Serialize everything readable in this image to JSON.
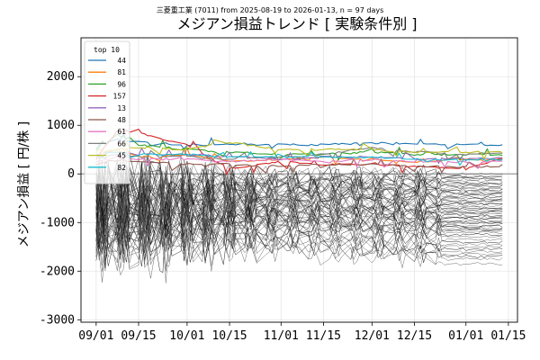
{
  "chart_data": {
    "type": "line",
    "supertitle": "三菱重工業 (7011) from 2025-08-19 to 2026-01-13, n = 97 days",
    "title": "メジアン損益トレンド [ 実験条件別 ]",
    "xlabel": "",
    "ylabel": "メジアン損益 [ 円/株 ]",
    "x_ticks": [
      "09/01",
      "09/15",
      "10/01",
      "10/15",
      "11/01",
      "11/15",
      "12/01",
      "12/15",
      "01/01",
      "01/15"
    ],
    "x_range": [
      "2025-08-27",
      "2026-01-18"
    ],
    "ylim": [
      -3050,
      2800
    ],
    "y_ticks": [
      -3000,
      -2000,
      -1000,
      0,
      1000,
      2000
    ],
    "grid": true,
    "zero_line": 0,
    "legend": {
      "title": "top 10",
      "placement": "top-left",
      "entries": [
        {
          "label": "44",
          "color": "#1f77b4"
        },
        {
          "label": "81",
          "color": "#ff7f0e"
        },
        {
          "label": "96",
          "color": "#2ca02c"
        },
        {
          "label": "157",
          "color": "#d62728"
        },
        {
          "label": "13",
          "color": "#9467bd"
        },
        {
          "label": "48",
          "color": "#8c564b"
        },
        {
          "label": "61",
          "color": "#e377c2"
        },
        {
          "label": "66",
          "color": "#7f7f7f"
        },
        {
          "label": "45",
          "color": "#bcbd22"
        },
        {
          "label": "82",
          "color": "#17becf"
        }
      ]
    },
    "top_series": [
      {
        "name": "44",
        "color": "#1f77b4",
        "x": [
          "2025-09-01",
          "2025-09-08",
          "2025-09-15",
          "2025-10-01",
          "2025-10-15",
          "2025-11-01",
          "2025-11-15",
          "2025-12-01",
          "2025-12-15",
          "2026-01-01",
          "2026-01-13"
        ],
        "y": [
          600,
          700,
          650,
          600,
          600,
          600,
          600,
          640,
          620,
          600,
          600
        ]
      },
      {
        "name": "81",
        "color": "#ff7f0e",
        "x": [
          "2025-09-01",
          "2025-09-08",
          "2025-09-15",
          "2025-10-01",
          "2025-10-15",
          "2025-11-01",
          "2025-11-15",
          "2025-12-01",
          "2025-12-15",
          "2026-01-01",
          "2026-01-13"
        ],
        "y": [
          400,
          500,
          350,
          400,
          250,
          300,
          350,
          300,
          250,
          300,
          300
        ]
      },
      {
        "name": "96",
        "color": "#2ca02c",
        "x": [
          "2025-09-01",
          "2025-09-08",
          "2025-09-15",
          "2025-10-01",
          "2025-10-15",
          "2025-11-01",
          "2025-11-15",
          "2025-12-01",
          "2025-12-15",
          "2026-01-01",
          "2026-01-13"
        ],
        "y": [
          500,
          800,
          600,
          500,
          450,
          400,
          400,
          450,
          400,
          400,
          380
        ]
      },
      {
        "name": "157",
        "color": "#d62728",
        "x": [
          "2025-09-01",
          "2025-09-08",
          "2025-09-15",
          "2025-10-01",
          "2025-10-15",
          "2025-11-01",
          "2025-11-15",
          "2025-12-01",
          "2025-12-15",
          "2026-01-01",
          "2026-01-13"
        ],
        "y": [
          300,
          900,
          850,
          600,
          100,
          250,
          200,
          200,
          150,
          100,
          320
        ]
      },
      {
        "name": "13",
        "color": "#9467bd",
        "x": [
          "2025-09-01",
          "2025-09-08",
          "2025-09-15",
          "2025-10-01",
          "2025-10-15",
          "2025-11-01",
          "2025-11-15",
          "2025-12-01",
          "2025-12-15",
          "2026-01-01",
          "2026-01-13"
        ],
        "y": [
          350,
          450,
          400,
          400,
          350,
          300,
          350,
          350,
          300,
          320,
          300
        ]
      },
      {
        "name": "48",
        "color": "#8c564b",
        "x": [
          "2025-09-01",
          "2025-09-08",
          "2025-09-15",
          "2025-10-01",
          "2025-10-15",
          "2025-11-01",
          "2025-11-15",
          "2025-12-01",
          "2025-12-15",
          "2026-01-01",
          "2026-01-13"
        ],
        "y": [
          200,
          300,
          250,
          200,
          200,
          150,
          200,
          200,
          150,
          150,
          150
        ]
      },
      {
        "name": "61",
        "color": "#e377c2",
        "x": [
          "2025-09-01",
          "2025-09-08",
          "2025-09-15",
          "2025-10-01",
          "2025-10-15",
          "2025-11-01",
          "2025-11-15",
          "2025-12-01",
          "2025-12-15",
          "2026-01-01",
          "2026-01-13"
        ],
        "y": [
          250,
          350,
          300,
          300,
          250,
          300,
          250,
          300,
          250,
          250,
          250
        ]
      },
      {
        "name": "66",
        "color": "#7f7f7f",
        "x": [
          "2025-09-01",
          "2025-09-08",
          "2025-09-15",
          "2025-10-01",
          "2025-10-15",
          "2025-11-01",
          "2025-11-15",
          "2025-12-01",
          "2025-12-15",
          "2026-01-01",
          "2026-01-13"
        ],
        "y": [
          300,
          400,
          350,
          350,
          300,
          350,
          400,
          550,
          450,
          400,
          420
        ]
      },
      {
        "name": "45",
        "color": "#bcbd22",
        "x": [
          "2025-09-01",
          "2025-09-08",
          "2025-09-15",
          "2025-10-01",
          "2025-10-15",
          "2025-11-01",
          "2025-11-15",
          "2025-12-01",
          "2025-12-15",
          "2026-01-01",
          "2026-01-13"
        ],
        "y": [
          450,
          500,
          550,
          500,
          650,
          500,
          500,
          500,
          450,
          450,
          450
        ]
      },
      {
        "name": "82",
        "color": "#17becf",
        "x": [
          "2025-09-01",
          "2025-09-08",
          "2025-09-15",
          "2025-10-01",
          "2025-10-15",
          "2025-11-01",
          "2025-11-15",
          "2025-12-01",
          "2025-12-15",
          "2026-01-01",
          "2026-01-13"
        ],
        "y": [
          400,
          450,
          400,
          400,
          350,
          350,
          350,
          350,
          300,
          300,
          300
        ]
      }
    ],
    "other_series": {
      "count": 60,
      "color": "#000000",
      "final_values": [
        -100,
        -150,
        -200,
        -250,
        -300,
        -350,
        -400,
        -450,
        -500,
        -550,
        -600,
        -650,
        -700,
        -750,
        -800,
        -850,
        -900,
        -950,
        -1000,
        -1050,
        -1100,
        -1150,
        -1200,
        -1300,
        -1400,
        -1500,
        -1600,
        -1700,
        -50,
        -120,
        -180,
        -220,
        -280,
        -330,
        -380,
        -420,
        -480,
        -520,
        -580,
        -620,
        -680,
        -720,
        -780,
        -820,
        -880,
        -920,
        -980,
        -1020,
        -1080,
        -1120,
        -1180,
        -1250,
        -1350,
        -1450,
        -1550,
        -1650,
        0,
        -60,
        -1750,
        -1850
      ]
    }
  }
}
